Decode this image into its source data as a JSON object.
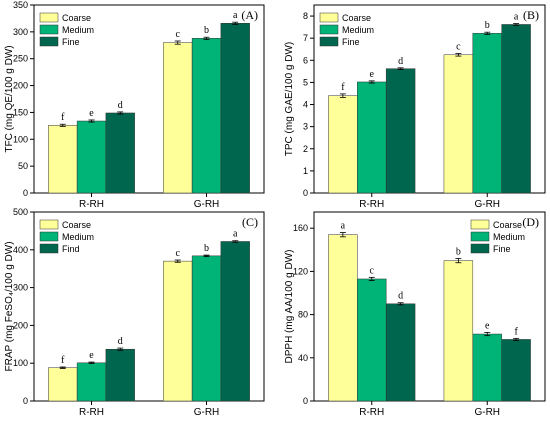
{
  "colors": {
    "Coarse": "#ffff99",
    "Medium": "#00b377",
    "Fine": "#00664d",
    "axis": "#000000"
  },
  "chart_data": [
    {
      "panel": "(A)",
      "type": "bar",
      "categories": [
        "R-RH",
        "G-RH"
      ],
      "ylabel": "TFC (mg QE/100 g DW)",
      "ylim": [
        0,
        350
      ],
      "yticks": [
        0,
        50,
        100,
        150,
        200,
        250,
        300,
        350
      ],
      "legend_position": "top-left",
      "series": [
        {
          "name": "Coarse",
          "values": [
            126,
            280
          ],
          "errors": [
            2,
            3
          ],
          "letters": [
            "f",
            "c"
          ]
        },
        {
          "name": "Medium",
          "values": [
            134,
            288
          ],
          "errors": [
            2,
            2
          ],
          "letters": [
            "e",
            "b"
          ]
        },
        {
          "name": "Fine",
          "values": [
            149,
            316
          ],
          "errors": [
            2,
            2
          ],
          "letters": [
            "d",
            "a"
          ]
        }
      ]
    },
    {
      "panel": "(B)",
      "type": "bar",
      "categories": [
        "R-RH",
        "G-RH"
      ],
      "ylabel": "TPC (mg GAE/100 g DW)",
      "ylim": [
        0,
        8.5
      ],
      "yticks": [
        0,
        1,
        2,
        3,
        4,
        5,
        6,
        7,
        8
      ],
      "legend_position": "top-left",
      "series": [
        {
          "name": "Coarse",
          "values": [
            4.4,
            6.25
          ],
          "errors": [
            0.08,
            0.06
          ],
          "letters": [
            "f",
            "c"
          ]
        },
        {
          "name": "Medium",
          "values": [
            5.02,
            7.22
          ],
          "errors": [
            0.05,
            0.05
          ],
          "letters": [
            "e",
            "b"
          ]
        },
        {
          "name": "Fine",
          "values": [
            5.62,
            7.62
          ],
          "errors": [
            0.04,
            0.04
          ],
          "letters": [
            "d",
            "a"
          ]
        }
      ]
    },
    {
      "panel": "(C)",
      "type": "bar",
      "categories": [
        "R-RH",
        "G-RH"
      ],
      "ylabel": "FRAP (mg FeSO₄/100 g DW)",
      "ylim": [
        0,
        500
      ],
      "yticks": [
        0,
        100,
        200,
        300,
        400,
        500
      ],
      "legend_position": "top-left",
      "series": [
        {
          "name": "Coarse",
          "values": [
            88,
            370
          ],
          "errors": [
            2,
            3
          ],
          "letters": [
            "f",
            "c"
          ]
        },
        {
          "name": "Medium",
          "values": [
            101,
            384
          ],
          "errors": [
            2,
            2
          ],
          "letters": [
            "e",
            "b"
          ]
        },
        {
          "name": "Find",
          "values": [
            137,
            422
          ],
          "errors": [
            3,
            2
          ],
          "letters": [
            "d",
            "a"
          ]
        }
      ]
    },
    {
      "panel": "(D)",
      "type": "bar",
      "categories": [
        "R-RH",
        "G-RH"
      ],
      "ylabel": "DPPH (mg AA/100 g DW)",
      "ylim": [
        0,
        175
      ],
      "yticks": [
        0,
        40,
        80,
        120,
        160
      ],
      "legend_position": "top-right",
      "series": [
        {
          "name": "Coarse",
          "values": [
            154,
            130
          ],
          "errors": [
            2,
            2
          ],
          "letters": [
            "a",
            "b"
          ]
        },
        {
          "name": "Medium",
          "values": [
            113,
            62
          ],
          "errors": [
            1.5,
            1.5
          ],
          "letters": [
            "c",
            "e"
          ]
        },
        {
          "name": "Fine",
          "values": [
            90,
            57
          ],
          "errors": [
            1,
            1
          ],
          "letters": [
            "d",
            "f"
          ]
        }
      ]
    }
  ]
}
